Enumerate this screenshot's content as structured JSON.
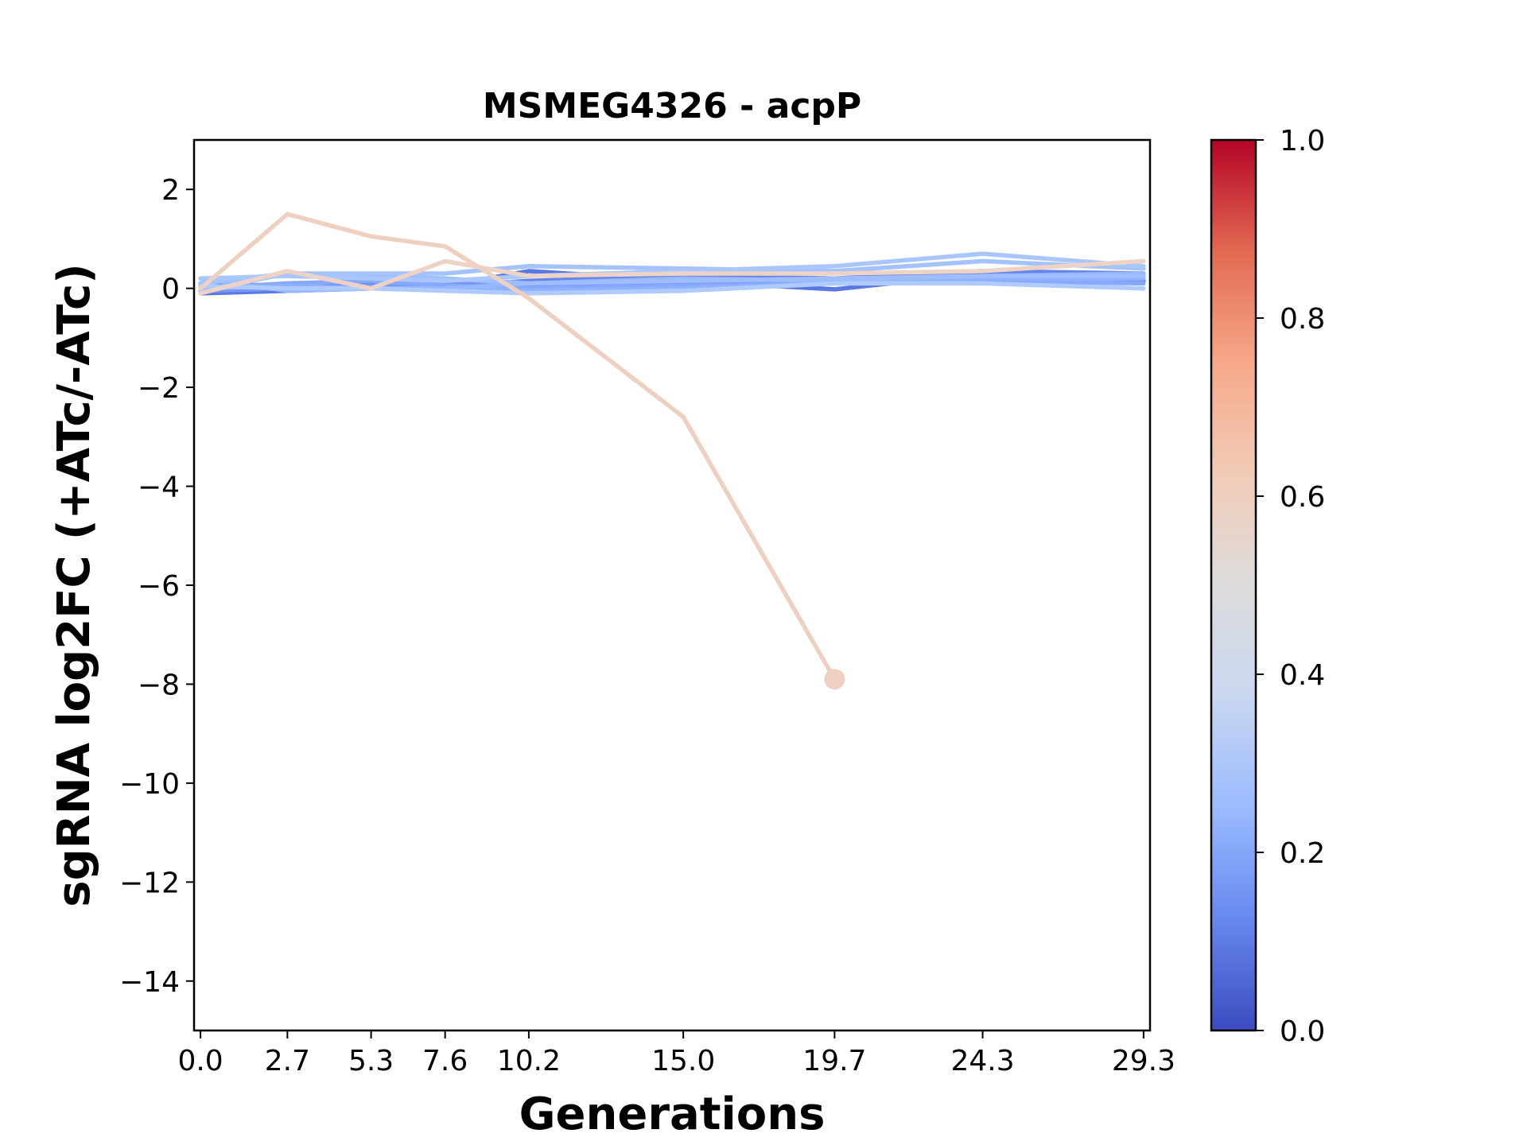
{
  "chart_data": {
    "type": "line",
    "title": "MSMEG4326 - acpP",
    "xlabel": "Generations",
    "ylabel": "sgRNA log2FC (+ATc/-ATc)",
    "x": [
      0.0,
      2.7,
      5.3,
      7.6,
      10.2,
      15.0,
      19.7,
      24.3,
      29.3
    ],
    "x_tick_labels": [
      "0.0",
      "2.7",
      "5.3",
      "7.6",
      "10.2",
      "15.0",
      "19.7",
      "24.3",
      "29.3"
    ],
    "xlim": [
      -0.2,
      29.5
    ],
    "ylim": [
      -15,
      3
    ],
    "y_ticks": [
      2,
      0,
      -2,
      -4,
      -6,
      -8,
      -10,
      -12,
      -14
    ],
    "y_tick_labels": [
      "2",
      "0",
      "−2",
      "−4",
      "−6",
      "−8",
      "−10",
      "−12",
      "−14"
    ],
    "grid": false,
    "colormap": "coolwarm",
    "colorbar": {
      "range": [
        0.0,
        1.0
      ],
      "ticks": [
        0.0,
        0.2,
        0.4,
        0.6,
        0.8,
        1.0
      ],
      "tick_labels": [
        "0.0",
        "0.2",
        "0.4",
        "0.6",
        "0.8",
        "1.0"
      ],
      "stops": [
        "#3b4cc0",
        "#6788ee",
        "#9abbff",
        "#c9d7f0",
        "#dddcdc",
        "#f2cbb7",
        "#f7a889",
        "#e26952",
        "#b40426"
      ]
    },
    "series": [
      {
        "color_value": 0.08,
        "color": "#5a78e4",
        "values": [
          -0.1,
          -0.05,
          0.0,
          0.05,
          0.35,
          0.15,
          -0.02,
          0.3,
          0.15
        ]
      },
      {
        "color_value": 0.12,
        "color": "#6485ec",
        "values": [
          0.1,
          0.05,
          0.1,
          0.05,
          0.15,
          0.25,
          0.2,
          0.35,
          0.3
        ]
      },
      {
        "color_value": 0.18,
        "color": "#7597f6",
        "values": [
          -0.05,
          0.0,
          0.05,
          0.1,
          0.05,
          0.1,
          0.15,
          0.2,
          0.25
        ]
      },
      {
        "color_value": 0.24,
        "color": "#86a9fc",
        "values": [
          0.0,
          0.1,
          0.15,
          0.05,
          0.0,
          0.05,
          0.1,
          0.15,
          0.1
        ]
      },
      {
        "color_value": 0.28,
        "color": "#90b2fe",
        "values": [
          0.0,
          0.05,
          0.0,
          0.0,
          -0.05,
          0.0,
          0.1,
          0.2,
          0.2
        ]
      },
      {
        "color_value": 0.3,
        "color": "#96b7ff",
        "values": [
          0.2,
          -0.05,
          0.0,
          0.0,
          0.1,
          0.2,
          0.15,
          0.25,
          0.3
        ]
      },
      {
        "color_value": 0.33,
        "color": "#9dbdff",
        "values": [
          -0.05,
          0.3,
          0.25,
          0.2,
          0.1,
          0.15,
          0.2,
          0.25,
          0.25
        ]
      },
      {
        "color_value": 0.35,
        "color": "#a3c2fe",
        "values": [
          0.1,
          0.3,
          0.3,
          0.3,
          0.45,
          0.4,
          0.35,
          0.55,
          0.4
        ]
      },
      {
        "color_value": 0.37,
        "color": "#a9c6fd",
        "values": [
          0.2,
          0.25,
          0.2,
          0.15,
          0.25,
          0.35,
          0.45,
          0.7,
          0.45
        ]
      },
      {
        "color_value": 0.39,
        "color": "#afcafc",
        "values": [
          0.05,
          0.0,
          0.0,
          -0.05,
          -0.1,
          -0.05,
          0.1,
          0.1,
          0.0
        ]
      },
      {
        "color_value": 0.58,
        "color": "#ecd3c5",
        "values": [
          -0.1,
          0.35,
          0.0,
          0.55,
          0.25,
          0.3,
          0.3,
          0.35,
          0.55
        ]
      },
      {
        "color_value": 0.6,
        "color": "#eed0c0",
        "values": [
          0.0,
          1.5,
          1.05,
          0.85,
          -0.2,
          -2.6,
          -7.9,
          null,
          null
        ],
        "end_marker": true
      }
    ]
  }
}
